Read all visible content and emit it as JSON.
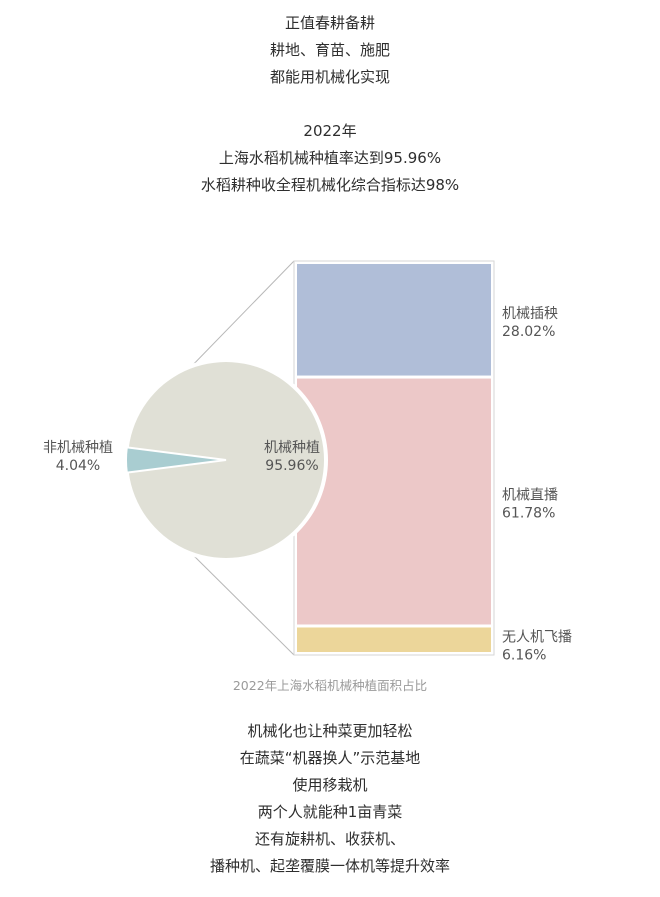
{
  "intro_lines": [
    "正值春耕备耕",
    "耕地、育苗、施肥",
    "都能用机械化实现"
  ],
  "stat_lines": [
    "2022年",
    "上海水稻机械种植率达到95.96%",
    "水稻耕种收全程机械化综合指标达98%"
  ],
  "outro_lines": [
    "机械化也让种菜更加轻松",
    "在蔬菜“机器换人”示范基地",
    "使用移栽机",
    "两个人就能种1亩青菜",
    "还有旋耕机、收获机、",
    "播种机、起垄覆膜一体机等提升效率"
  ],
  "chart_data": {
    "type": "pie",
    "caption": "2022年上海水稻机械种植面积占比",
    "pie": {
      "slices": [
        {
          "label": "机械种植",
          "value_text": "95.96%",
          "value": 95.96,
          "color": "#e0e0d6"
        },
        {
          "label": "非机械种植",
          "value_text": "4.04%",
          "value": 4.04,
          "color": "#a9cdd1"
        }
      ]
    },
    "breakdown": {
      "type": "stacked-bar",
      "segments": [
        {
          "label": "机械插秧",
          "value_text": "28.02%",
          "value": 28.02,
          "color": "#b0bed8"
        },
        {
          "label": "机械直播",
          "value_text": "61.78%",
          "value": 61.78,
          "color": "#ecc8c8"
        },
        {
          "label": "无人机飞播",
          "value_text": "6.16%",
          "value": 6.16,
          "color": "#ecd69a"
        }
      ]
    }
  }
}
